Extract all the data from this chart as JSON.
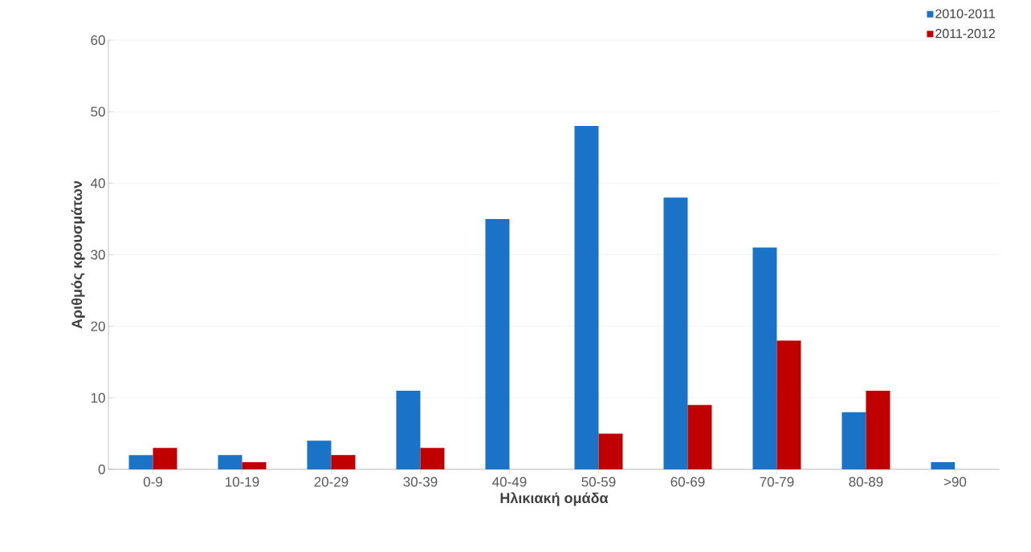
{
  "chart_data": {
    "type": "bar",
    "xlabel": "Ηλικιακή ομάδα",
    "ylabel": "Αριθμός κρουσμάτων",
    "categories": [
      "0-9",
      "10-19",
      "20-29",
      "30-39",
      "40-49",
      "50-59",
      "60-69",
      "70-79",
      "80-89",
      ">90"
    ],
    "series": [
      {
        "name": "2010-2011",
        "color": "#1a73c6",
        "values": [
          2,
          2,
          4,
          11,
          35,
          48,
          38,
          31,
          8,
          1
        ]
      },
      {
        "name": "2011-2012",
        "color": "#c00000",
        "values": [
          3,
          1,
          2,
          3,
          0,
          5,
          9,
          18,
          11,
          0
        ]
      }
    ],
    "ylim": [
      0,
      60
    ],
    "yticks": [
      0,
      10,
      20,
      30,
      40,
      50,
      60
    ],
    "grid": "y",
    "legend": "top right"
  }
}
